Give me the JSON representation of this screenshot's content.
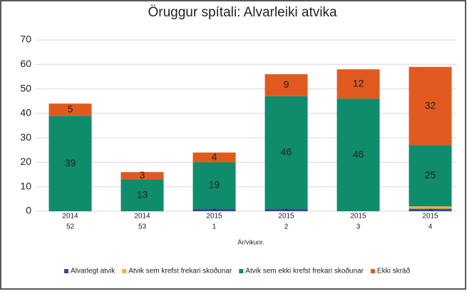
{
  "chart_data": {
    "type": "stacked_bar",
    "title": "Öruggur spítali: Alvarleiki atvika",
    "x_label": "Ár/vikunr.",
    "categories": [
      [
        "2014",
        "52"
      ],
      [
        "2014",
        "53"
      ],
      [
        "2015",
        "1"
      ],
      [
        "2015",
        "2"
      ],
      [
        "2015",
        "3"
      ],
      [
        "2015",
        "4"
      ]
    ],
    "series": [
      {
        "name": "Alvarlegt atvik",
        "color": "#2f4f8f",
        "values": [
          0,
          0,
          1,
          1,
          0,
          1
        ],
        "labels": true
      },
      {
        "name": "Atvik sem krefst frekari skoðunar",
        "color": "#f2b134",
        "values": [
          0,
          0,
          0,
          0,
          0,
          1
        ],
        "labels": false
      },
      {
        "name": "Atvik sem ekki krefst frekari skoðunar",
        "color": "#0f8c6c",
        "values": [
          39,
          13,
          19,
          46,
          46,
          25
        ],
        "labels": true
      },
      {
        "name": "Ekki skráð",
        "color": "#e05a1f",
        "values": [
          5,
          3,
          4,
          9,
          12,
          32
        ],
        "labels": true
      }
    ],
    "ylim": [
      0,
      70
    ],
    "yticks": [
      0,
      10,
      20,
      30,
      40,
      50,
      60,
      70
    ],
    "grid": true,
    "legend": "bottom"
  }
}
